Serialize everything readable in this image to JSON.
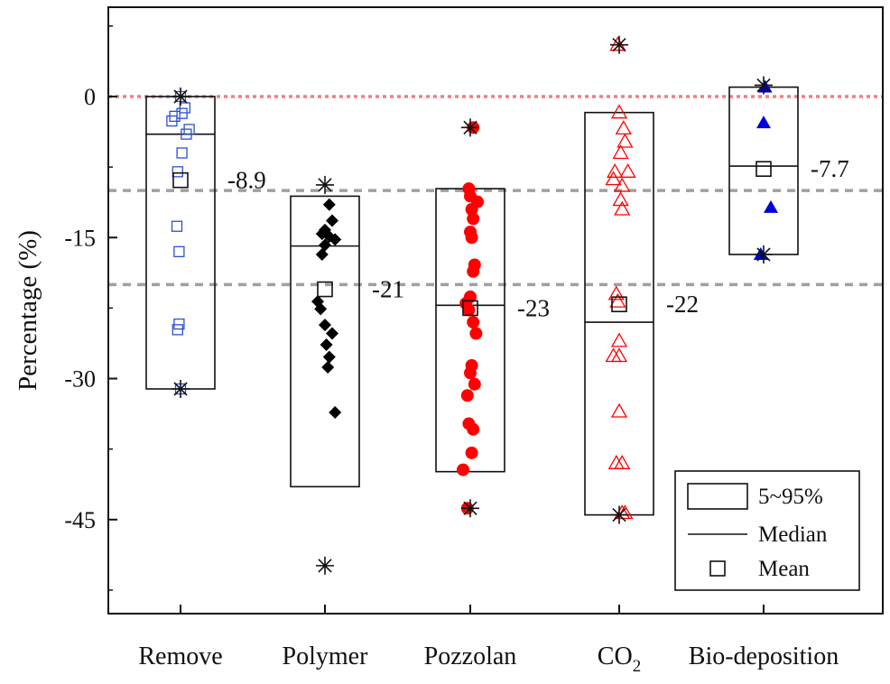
{
  "chart_data": {
    "type": "box",
    "ylabel": "Percentage (%)",
    "xlabel": "",
    "ylim": [
      -55,
      9.5
    ],
    "yticks": [
      0,
      -15,
      -30,
      -45
    ],
    "categories": [
      {
        "label": "Remove",
        "sub": ""
      },
      {
        "label": "Polymer",
        "sub": ""
      },
      {
        "label": "Pozzolan",
        "sub": ""
      },
      {
        "label": "CO",
        "sub": "2"
      },
      {
        "label": "Bio-deposition",
        "sub": ""
      }
    ],
    "reference_lines": [
      {
        "y": 0,
        "color": "#f08080",
        "style": "dotted"
      },
      {
        "y": -10,
        "color": "#a0a0a0",
        "style": "dashed"
      },
      {
        "y": -20,
        "color": "#a0a0a0",
        "style": "dashed"
      }
    ],
    "legend": {
      "position": "bottom-right",
      "items": [
        {
          "label": "5~95%",
          "symbol": "box"
        },
        {
          "label": "Median",
          "symbol": "line"
        },
        {
          "label": "Mean",
          "symbol": "square"
        }
      ]
    },
    "series": [
      {
        "category": "Remove",
        "marker": "square-open",
        "color": "#2b4fd6",
        "box": [
          -31.1,
          0
        ],
        "median": -4,
        "mean": -8.9,
        "mean_label": "-8.9",
        "extremes": [
          0,
          -31.1
        ],
        "points": [
          {
            "x": 0.0,
            "y": 0
          },
          {
            "x": 0.06,
            "y": -1.2
          },
          {
            "x": 0.02,
            "y": -1.8
          },
          {
            "x": -0.12,
            "y": -2.6
          },
          {
            "x": -0.08,
            "y": -2.1
          },
          {
            "x": 0.12,
            "y": -3.5
          },
          {
            "x": 0.08,
            "y": -4.0
          },
          {
            "x": 0.02,
            "y": -6.0
          },
          {
            "x": -0.04,
            "y": -8.0
          },
          {
            "x": -0.05,
            "y": -13.8
          },
          {
            "x": -0.02,
            "y": -16.5
          },
          {
            "x": -0.02,
            "y": -24.2
          },
          {
            "x": -0.04,
            "y": -24.8
          },
          {
            "x": 0.0,
            "y": -31.1
          }
        ]
      },
      {
        "category": "Polymer",
        "marker": "diamond",
        "color": "#000000",
        "box": [
          -41.5,
          -10.6
        ],
        "median": -15.9,
        "mean": -20.5,
        "mean_label": "-21",
        "extremes": [
          -9.4,
          -49.9
        ],
        "points": [
          {
            "x": 0.06,
            "y": -11.5
          },
          {
            "x": 0.1,
            "y": -13.2
          },
          {
            "x": 0.0,
            "y": -14.2
          },
          {
            "x": -0.04,
            "y": -14.6
          },
          {
            "x": 0.06,
            "y": -14.9
          },
          {
            "x": 0.14,
            "y": -15.2
          },
          {
            "x": 0.0,
            "y": -15.8
          },
          {
            "x": -0.04,
            "y": -16.8
          },
          {
            "x": -0.1,
            "y": -21.8
          },
          {
            "x": -0.06,
            "y": -22.6
          },
          {
            "x": 0.0,
            "y": -24.3
          },
          {
            "x": 0.1,
            "y": -25.2
          },
          {
            "x": 0.02,
            "y": -26.4
          },
          {
            "x": 0.06,
            "y": -27.7
          },
          {
            "x": 0.04,
            "y": -28.8
          },
          {
            "x": 0.14,
            "y": -33.6
          }
        ]
      },
      {
        "category": "Pozzolan",
        "marker": "circle",
        "color": "#ff0000",
        "box": [
          -39.9,
          -9.8
        ],
        "median": -22.2,
        "mean": -22.5,
        "mean_label": "-23",
        "extremes": [
          -3.3,
          -43.8
        ],
        "points": [
          {
            "x": 0.04,
            "y": -3.3
          },
          {
            "x": -0.02,
            "y": -9.8
          },
          {
            "x": 0.0,
            "y": -10.6
          },
          {
            "x": 0.1,
            "y": -11.2
          },
          {
            "x": 0.02,
            "y": -12.0
          },
          {
            "x": 0.04,
            "y": -13.0
          },
          {
            "x": 0.0,
            "y": -14.4
          },
          {
            "x": 0.02,
            "y": -15.0
          },
          {
            "x": 0.06,
            "y": -17.9
          },
          {
            "x": 0.04,
            "y": -18.6
          },
          {
            "x": 0.0,
            "y": -21.3
          },
          {
            "x": -0.06,
            "y": -22.0
          },
          {
            "x": -0.02,
            "y": -22.7
          },
          {
            "x": 0.04,
            "y": -24.0
          },
          {
            "x": 0.08,
            "y": -25.2
          },
          {
            "x": 0.02,
            "y": -28.6
          },
          {
            "x": 0.0,
            "y": -29.4
          },
          {
            "x": 0.06,
            "y": -30.6
          },
          {
            "x": -0.04,
            "y": -31.8
          },
          {
            "x": -0.02,
            "y": -34.8
          },
          {
            "x": 0.04,
            "y": -35.4
          },
          {
            "x": 0.02,
            "y": -37.9
          },
          {
            "x": -0.1,
            "y": -39.7
          },
          {
            "x": -0.04,
            "y": -43.8
          }
        ]
      },
      {
        "category": "CO2",
        "marker": "triangle-open",
        "color": "#ff0000",
        "box": [
          -44.5,
          -1.7
        ],
        "median": -24,
        "mean": -22.1,
        "mean_label": "-22",
        "extremes": [
          5.5,
          -44.5
        ],
        "points": [
          {
            "x": -0.02,
            "y": 5.5
          },
          {
            "x": 0.0,
            "y": -1.7
          },
          {
            "x": 0.06,
            "y": -3.4
          },
          {
            "x": 0.08,
            "y": -4.8
          },
          {
            "x": 0.02,
            "y": -6.0
          },
          {
            "x": -0.06,
            "y": -8.0
          },
          {
            "x": 0.12,
            "y": -8.0
          },
          {
            "x": -0.08,
            "y": -8.8
          },
          {
            "x": 0.04,
            "y": -9.5
          },
          {
            "x": 0.02,
            "y": -11.0
          },
          {
            "x": 0.04,
            "y": -12.0
          },
          {
            "x": -0.04,
            "y": -21.0
          },
          {
            "x": -0.02,
            "y": -21.8
          },
          {
            "x": 0.0,
            "y": -26.0
          },
          {
            "x": -0.08,
            "y": -27.6
          },
          {
            "x": 0.0,
            "y": -27.6
          },
          {
            "x": 0.0,
            "y": -33.5
          },
          {
            "x": -0.04,
            "y": -39.0
          },
          {
            "x": 0.04,
            "y": -39.0
          },
          {
            "x": 0.04,
            "y": -44.3
          },
          {
            "x": 0.08,
            "y": -44.3
          }
        ]
      },
      {
        "category": "Bio-deposition",
        "marker": "triangle",
        "color": "#0000dd",
        "box": [
          -16.8,
          1.0
        ],
        "median": -7.4,
        "mean": -7.7,
        "mean_label": "-7.7",
        "extremes": [
          1.2,
          -16.8
        ],
        "points": [
          {
            "x": 0.02,
            "y": 1.0
          },
          {
            "x": 0.0,
            "y": -2.8
          },
          {
            "x": 0.1,
            "y": -11.8
          },
          {
            "x": -0.04,
            "y": -16.8
          }
        ]
      }
    ]
  }
}
